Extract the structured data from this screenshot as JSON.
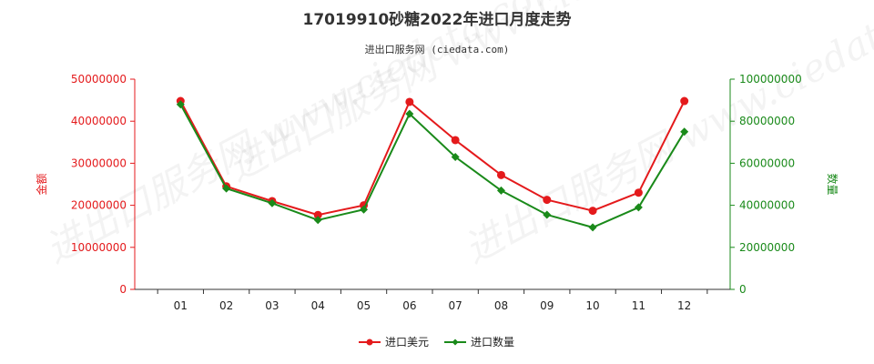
{
  "title": "17019910砂糖2022年进口月度走势",
  "subtitle": "进出口服务网 (ciedata.com)",
  "watermark": "进出口服务网 www.ciedata.com",
  "colors": {
    "value": "#e41a1c",
    "quantity": "#1a8a1a",
    "axis": "#333333"
  },
  "chart_data": {
    "type": "line",
    "categories": [
      "01",
      "02",
      "03",
      "04",
      "05",
      "06",
      "07",
      "08",
      "09",
      "10",
      "11",
      "12"
    ],
    "y_left": {
      "label": "金额",
      "min": 0,
      "max": 50000000,
      "ticks": [
        "0",
        "10000000",
        "20000000",
        "30000000",
        "40000000",
        "50000000"
      ]
    },
    "y_right": {
      "label": "数量",
      "min": 0,
      "max": 100000000,
      "ticks": [
        "0",
        "20000000",
        "40000000",
        "60000000",
        "80000000",
        "100000000"
      ]
    },
    "series": [
      {
        "name": "进口美元",
        "axis": "left",
        "marker": "circle",
        "color": "#e41a1c",
        "values": [
          44800000,
          24500000,
          21000000,
          17700000,
          20000000,
          44600000,
          35500000,
          27200000,
          21300000,
          18700000,
          23000000,
          44800000
        ]
      },
      {
        "name": "进口数量",
        "axis": "right",
        "marker": "diamond",
        "color": "#1a8a1a",
        "values": [
          88000000,
          48000000,
          41000000,
          33000000,
          38000000,
          83500000,
          63000000,
          47000000,
          35500000,
          29500000,
          39000000,
          75000000
        ]
      }
    ],
    "legend_position": "bottom-center",
    "grid": false
  }
}
